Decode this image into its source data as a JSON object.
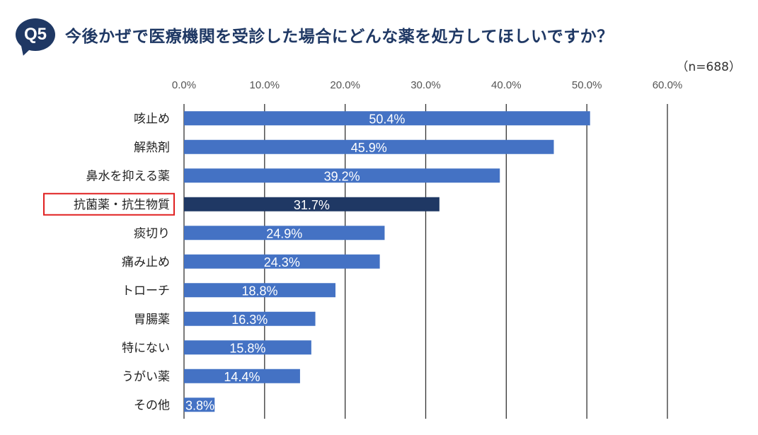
{
  "header": {
    "badge": "Q5",
    "title": "今後かぜで医療機関を受診した場合にどんな薬を処方してほしいですか？",
    "sample_size": "（n=688）"
  },
  "colors": {
    "bar": "#4472c4",
    "highlight_bar": "#1f3864",
    "highlight_box": "#e02020",
    "grid": "#333333",
    "title": "#1f3864"
  },
  "chart_data": {
    "type": "bar",
    "orientation": "horizontal",
    "xlim": [
      0,
      60
    ],
    "xticks": [
      "0.0%",
      "10.0%",
      "20.0%",
      "30.0%",
      "40.0%",
      "50.0%",
      "60.0%"
    ],
    "xtick_values": [
      0,
      10,
      20,
      30,
      40,
      50,
      60
    ],
    "grid": true,
    "tick_position": "top",
    "highlight_category": "抗菌薬・抗生物質",
    "categories": [
      "咳止め",
      "解熱剤",
      "鼻水を抑える薬",
      "抗菌薬・抗生物質",
      "痰切り",
      "痛み止め",
      "トローチ",
      "胃腸薬",
      "特にない",
      "うがい薬",
      "その他"
    ],
    "values": [
      50.4,
      45.9,
      39.2,
      31.7,
      24.9,
      24.3,
      18.8,
      16.3,
      15.8,
      14.4,
      3.8
    ],
    "value_labels": [
      "50.4%",
      "45.9%",
      "39.2%",
      "31.7%",
      "24.9%",
      "24.3%",
      "18.8%",
      "16.3%",
      "15.8%",
      "14.4%",
      "3.8%"
    ]
  }
}
